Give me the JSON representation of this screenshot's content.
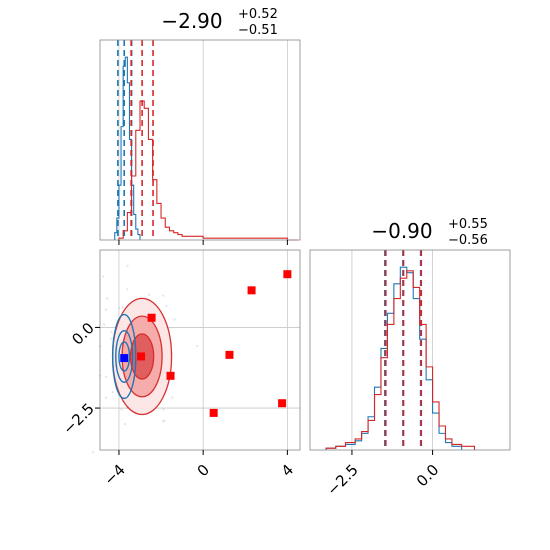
{
  "chart_data": [
    {
      "type": "histogram",
      "panel": "top-left",
      "title": "$-2.90^{+0.52}_{-0.51}$",
      "title_parts": {
        "value": "−2.90",
        "sup": "+0.52",
        "sub": "−0.51"
      },
      "xlim": [
        -4.9,
        4.6
      ],
      "xticks": [
        -4,
        0,
        4
      ],
      "grid": true,
      "series": [
        {
          "color": "#1f77b4",
          "bin_edges": [
            -4.2,
            -4.1,
            -4.0,
            -3.9,
            -3.8,
            -3.7,
            -3.6,
            -3.5,
            -3.4,
            -3.3,
            -3.2,
            -3.1,
            -3.0
          ],
          "counts": [
            0.04,
            0.12,
            0.3,
            0.62,
            0.95,
            1.0,
            0.86,
            0.55,
            0.3,
            0.14,
            0.06,
            0.03
          ],
          "quantile_lines": [
            -4.05,
            -3.75,
            -3.4
          ]
        },
        {
          "color": "#d62728",
          "bin_edges": [
            -4.0,
            -3.8,
            -3.6,
            -3.4,
            -3.2,
            -3.0,
            -2.8,
            -2.6,
            -2.4,
            -2.2,
            -2.0,
            -1.8,
            -1.6,
            -1.4,
            -1.2,
            -1.0,
            0.0,
            1.0,
            2.0,
            3.0,
            4.0,
            4.5
          ],
          "counts": [
            0.01,
            0.05,
            0.15,
            0.35,
            0.6,
            0.76,
            0.72,
            0.55,
            0.33,
            0.2,
            0.12,
            0.07,
            0.05,
            0.04,
            0.03,
            0.02,
            0.01,
            0.01,
            0.01,
            0.01,
            0.0
          ],
          "quantile_lines": [
            -3.42,
            -2.9,
            -2.38
          ]
        }
      ]
    },
    {
      "type": "histogram",
      "panel": "bottom-right",
      "title": "$-0.90^{+0.55}_{-0.56}$",
      "title_parts": {
        "value": "−0.90",
        "sup": "+0.55",
        "sub": "−0.56"
      },
      "xlim": [
        -3.8,
        2.4
      ],
      "xticks": [
        -2.5,
        0.0
      ],
      "xtick_labels": [
        "−2.5",
        "0.0"
      ],
      "grid": true,
      "series": [
        {
          "color": "#1f77b4",
          "bin_edges": [
            -3.3,
            -3.0,
            -2.7,
            -2.4,
            -2.2,
            -2.0,
            -1.8,
            -1.6,
            -1.4,
            -1.2,
            -1.0,
            -0.8,
            -0.6,
            -0.4,
            -0.2,
            0.0,
            0.2,
            0.4,
            0.6,
            0.9
          ],
          "counts": [
            0.01,
            0.02,
            0.03,
            0.05,
            0.09,
            0.18,
            0.34,
            0.55,
            0.74,
            0.9,
            0.99,
            0.96,
            0.82,
            0.6,
            0.38,
            0.2,
            0.09,
            0.04,
            0.02
          ],
          "quantile_lines": [
            -1.48,
            -0.92,
            -0.37
          ]
        },
        {
          "color": "#d62728",
          "bin_edges": [
            -3.3,
            -3.0,
            -2.7,
            -2.4,
            -2.2,
            -2.0,
            -1.8,
            -1.6,
            -1.4,
            -1.2,
            -1.0,
            -0.8,
            -0.6,
            -0.4,
            -0.2,
            0.0,
            0.2,
            0.4,
            0.6,
            0.9,
            1.3
          ],
          "counts": [
            0.01,
            0.02,
            0.04,
            0.06,
            0.1,
            0.16,
            0.3,
            0.5,
            0.68,
            0.82,
            0.93,
            0.97,
            0.88,
            0.68,
            0.45,
            0.26,
            0.13,
            0.06,
            0.03,
            0.02
          ],
          "quantile_lines": [
            -1.45,
            -0.9,
            -0.35
          ]
        }
      ]
    },
    {
      "type": "contour",
      "panel": "bottom-left",
      "xlim": [
        -4.9,
        4.6
      ],
      "ylim": [
        -3.8,
        2.4
      ],
      "xticks": [
        -4,
        0,
        4
      ],
      "xtick_labels": [
        "−4",
        "0",
        "4"
      ],
      "yticks": [
        0.0,
        -2.5
      ],
      "ytick_labels": [
        "0.0",
        "−2.5"
      ],
      "grid": true,
      "series": [
        {
          "color": "#1f77b4",
          "center": [
            -3.75,
            -0.9
          ],
          "contour_radii": [
            [
              0.25,
              0.45
            ],
            [
              0.4,
              0.8
            ],
            [
              0.55,
              1.3
            ]
          ]
        },
        {
          "color": "#d62728",
          "center": [
            -2.9,
            -0.9
          ],
          "contour_radii": [
            [
              0.55,
              0.7
            ],
            [
              0.95,
              1.25
            ],
            [
              1.4,
              1.8
            ]
          ]
        }
      ],
      "red_markers": [
        [
          4.0,
          1.65
        ],
        [
          2.3,
          1.15
        ],
        [
          -2.45,
          0.3
        ],
        [
          -2.95,
          -0.9
        ],
        [
          1.25,
          -0.85
        ],
        [
          -1.55,
          -1.5
        ],
        [
          3.75,
          -2.35
        ],
        [
          0.5,
          -2.65
        ]
      ],
      "blue_markers": [
        [
          -3.75,
          -0.95
        ]
      ]
    }
  ]
}
